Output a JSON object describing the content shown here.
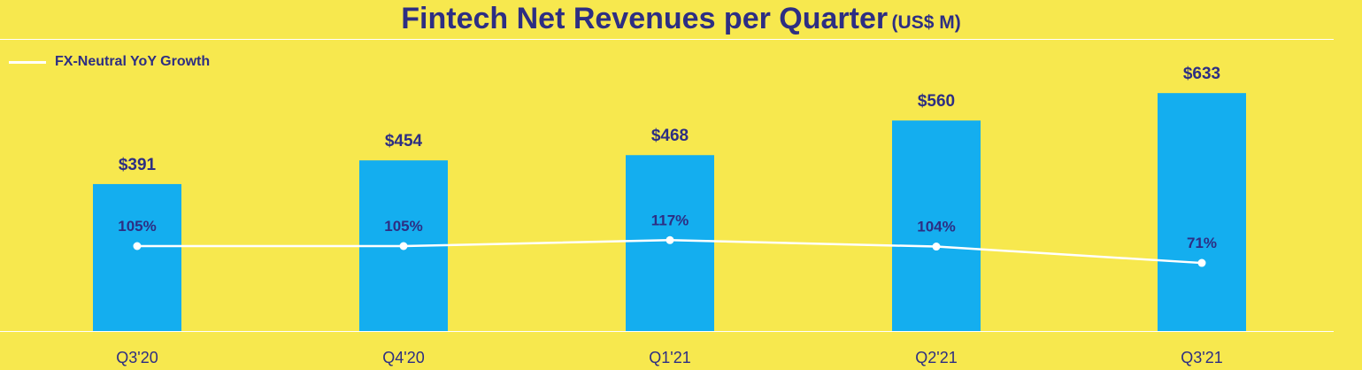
{
  "title": "Fintech Net Revenues per Quarter",
  "title_unit": "(US$ M)",
  "legend_label": "FX-Neutral YoY Growth",
  "colors": {
    "background": "#F7E84E",
    "bar": "#14AEEF",
    "text": "#2D2E83",
    "line": "#FFFFFF"
  },
  "chart_data": {
    "type": "bar",
    "title": "Fintech Net Revenues per Quarter (US$ M)",
    "categories": [
      "Q3'20",
      "Q4'20",
      "Q1'21",
      "Q2'21",
      "Q3'21"
    ],
    "series": [
      {
        "name": "Net Revenues",
        "values": [
          391,
          454,
          468,
          560,
          633
        ],
        "labels": [
          "$391",
          "$454",
          "$468",
          "$560",
          "$633"
        ]
      },
      {
        "name": "FX-Neutral YoY Growth",
        "type": "line",
        "values": [
          105,
          105,
          117,
          104,
          71
        ],
        "labels": [
          "105%",
          "105%",
          "117%",
          "104%",
          "71%"
        ]
      }
    ],
    "xlabel": "",
    "ylabel": "",
    "ylim": [
      0,
      700
    ]
  }
}
